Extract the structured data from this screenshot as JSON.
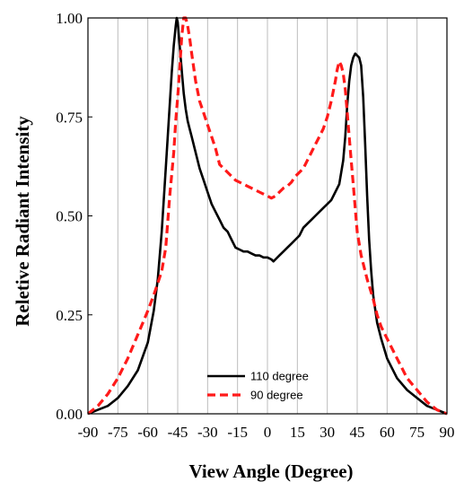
{
  "chart_data": {
    "type": "line",
    "xlabel": "View Angle (Degree)",
    "ylabel": "Reletive Radiant Intensity",
    "xlim": [
      -90,
      90
    ],
    "ylim": [
      0,
      1
    ],
    "xticks": [
      -90,
      -75,
      -60,
      -45,
      -30,
      -15,
      0,
      15,
      30,
      45,
      60,
      75,
      90
    ],
    "yticks": [
      0,
      0.25,
      0.5,
      0.75,
      1.0
    ],
    "ytick_labels": [
      "0.00",
      "0.25",
      "0.50",
      "0.75",
      "1.00"
    ],
    "grid": "vertical",
    "legend_position": "bottom-center",
    "series": [
      {
        "name": "110 degree",
        "color": "#000000",
        "style": "solid",
        "x": [
          -90,
          -85,
          -80,
          -75,
          -70,
          -65,
          -60,
          -57,
          -55,
          -53,
          -51,
          -50,
          -49,
          -48,
          -47,
          -46,
          -45.5,
          -45,
          -44.5,
          -44,
          -43,
          -42,
          -41,
          -40,
          -39,
          -38,
          -36,
          -34,
          -32,
          -30,
          -28,
          -26,
          -24,
          -22,
          -20,
          -18,
          -16,
          -14,
          -12,
          -10,
          -8,
          -6,
          -4,
          -2,
          0,
          2,
          3,
          4,
          6,
          8,
          10,
          12,
          14,
          16,
          18,
          20,
          22,
          24,
          26,
          28,
          30,
          32,
          34,
          36,
          37,
          38,
          39,
          40,
          41,
          42,
          43,
          44,
          45,
          46,
          47,
          48,
          49,
          50,
          51,
          52,
          53,
          55,
          57,
          60,
          65,
          70,
          75,
          80,
          85,
          90
        ],
        "y": [
          0.0,
          0.01,
          0.02,
          0.04,
          0.07,
          0.11,
          0.18,
          0.26,
          0.34,
          0.46,
          0.62,
          0.7,
          0.78,
          0.86,
          0.93,
          0.98,
          1.0,
          0.99,
          0.96,
          0.93,
          0.87,
          0.81,
          0.77,
          0.74,
          0.72,
          0.7,
          0.66,
          0.62,
          0.59,
          0.56,
          0.53,
          0.51,
          0.49,
          0.47,
          0.46,
          0.44,
          0.42,
          0.415,
          0.41,
          0.41,
          0.405,
          0.4,
          0.4,
          0.395,
          0.395,
          0.39,
          0.385,
          0.39,
          0.4,
          0.41,
          0.42,
          0.43,
          0.44,
          0.45,
          0.47,
          0.48,
          0.49,
          0.5,
          0.51,
          0.52,
          0.53,
          0.54,
          0.56,
          0.58,
          0.61,
          0.64,
          0.7,
          0.78,
          0.84,
          0.88,
          0.9,
          0.91,
          0.905,
          0.9,
          0.88,
          0.8,
          0.68,
          0.55,
          0.44,
          0.36,
          0.3,
          0.23,
          0.19,
          0.14,
          0.09,
          0.06,
          0.04,
          0.02,
          0.01,
          0.0
        ]
      },
      {
        "name": "90 degree",
        "color": "#ff1a1a",
        "style": "dashed",
        "x": [
          -90,
          -85,
          -80,
          -75,
          -70,
          -65,
          -60,
          -57,
          -55,
          -53,
          -51,
          -49,
          -47,
          -46,
          -45,
          -44,
          -43,
          -42,
          -41,
          -40,
          -39,
          -38,
          -36,
          -34,
          -32,
          -30,
          -28,
          -26,
          -24,
          -22,
          -20,
          -18,
          -16,
          -14,
          -12,
          -10,
          -8,
          -6,
          -4,
          -2,
          0,
          2,
          4,
          6,
          8,
          10,
          12,
          14,
          16,
          18,
          20,
          22,
          24,
          26,
          28,
          30,
          32,
          34,
          35,
          36,
          37,
          38,
          39,
          40,
          41,
          42,
          43,
          44,
          45,
          47,
          50,
          53,
          55,
          57,
          60,
          65,
          70,
          75,
          80,
          85,
          90
        ],
        "y": [
          0.0,
          0.02,
          0.05,
          0.09,
          0.14,
          0.2,
          0.26,
          0.3,
          0.33,
          0.36,
          0.42,
          0.55,
          0.66,
          0.74,
          0.8,
          0.87,
          0.95,
          1.0,
          1.0,
          0.98,
          0.95,
          0.91,
          0.84,
          0.79,
          0.76,
          0.73,
          0.7,
          0.67,
          0.63,
          0.62,
          0.61,
          0.6,
          0.59,
          0.585,
          0.58,
          0.575,
          0.57,
          0.565,
          0.56,
          0.555,
          0.55,
          0.545,
          0.55,
          0.56,
          0.57,
          0.575,
          0.585,
          0.6,
          0.61,
          0.62,
          0.64,
          0.66,
          0.68,
          0.7,
          0.72,
          0.75,
          0.79,
          0.84,
          0.87,
          0.89,
          0.88,
          0.86,
          0.82,
          0.76,
          0.7,
          0.64,
          0.58,
          0.52,
          0.46,
          0.4,
          0.34,
          0.29,
          0.25,
          0.22,
          0.19,
          0.14,
          0.09,
          0.06,
          0.03,
          0.01,
          0.0
        ]
      }
    ]
  }
}
